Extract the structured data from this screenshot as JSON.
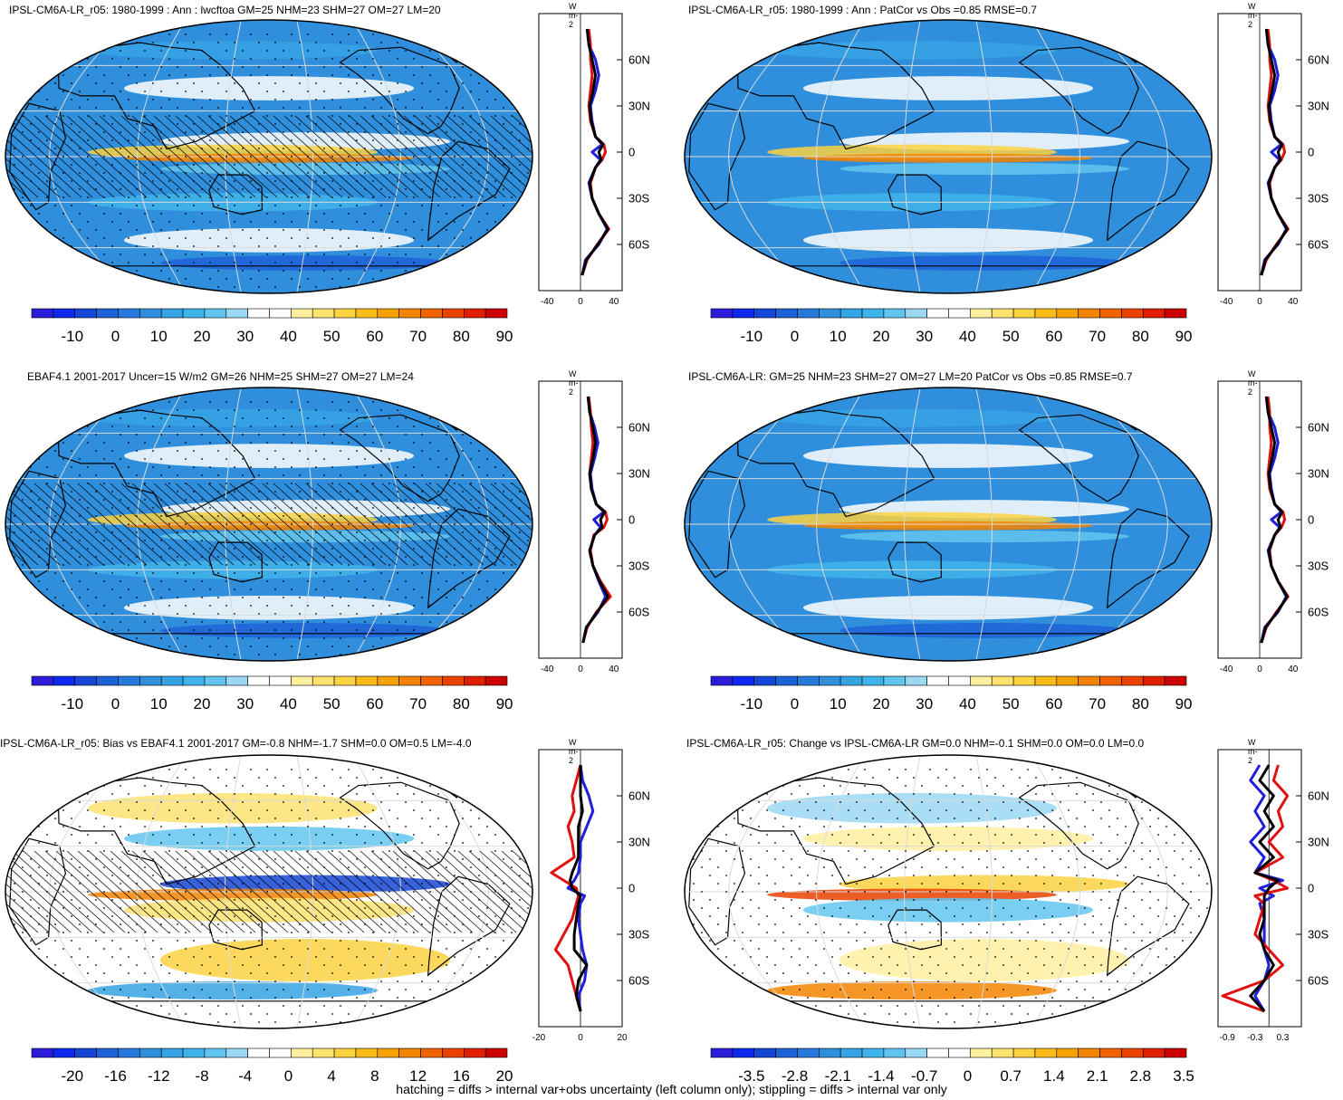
{
  "footnote": "hatching = diffs > internal var+obs uncertainty (left column only); stippling = diffs > internal var only",
  "colors": {
    "ocean_blue": "#2f8fdc",
    "model_line": "#1f1fdc",
    "obs_line": "#e01010",
    "total_line": "#000000"
  },
  "colorbars": {
    "abs": [
      "#2a1cd8",
      "#0d28ee",
      "#1546d6",
      "#1e62d8",
      "#2879dd",
      "#2f8fdc",
      "#36a3e4",
      "#3fb4ea",
      "#62c5ef",
      "#9ad8f4",
      "#ffffff",
      "#ffffff",
      "#fff0a0",
      "#fde270",
      "#fbd23f",
      "#f9bc18",
      "#f6a207",
      "#f48400",
      "#f06400",
      "#ea4200",
      "#e01e00",
      "#cc0000"
    ],
    "bias": [
      "#2a1cd8",
      "#0d28ee",
      "#1546d6",
      "#1e62d8",
      "#2879dd",
      "#2f8fdc",
      "#36a3e4",
      "#3fb4ea",
      "#62c5ef",
      "#9ad8f4",
      "#ffffff",
      "#ffffff",
      "#fff0a0",
      "#fde270",
      "#fbd23f",
      "#f9bc18",
      "#f6a207",
      "#f48400",
      "#f06400",
      "#ea4200",
      "#e01e00",
      "#cc0000"
    ]
  },
  "chart_data": [
    {
      "type": "map-with-zonal-mean",
      "title": "IPSL-CM6A-LR_r05: 1980-1999 : Ann : lwcftoa GM=25 NHM=23 SHM=27 OM=27 LM=20",
      "unit": "W m-2",
      "colorbar_ticks": [
        "-10",
        "0",
        "10",
        "20",
        "30",
        "40",
        "50",
        "60",
        "70",
        "80",
        "90"
      ],
      "zonal_xticks": [
        "-40",
        "0",
        "40"
      ],
      "zonal_xlim": [
        -50,
        50
      ],
      "lat_ticks": [
        "60N",
        "30N",
        "0",
        "30S",
        "60S"
      ],
      "lat_values": [
        60,
        30,
        0,
        -30,
        -60
      ],
      "series": [
        {
          "name": "model",
          "lat": [
            80,
            70,
            60,
            50,
            40,
            30,
            20,
            10,
            5,
            0,
            -5,
            -10,
            -20,
            -30,
            -40,
            -50,
            -60,
            -70,
            -80
          ],
          "values": [
            8,
            10,
            18,
            22,
            18,
            12,
            14,
            18,
            26,
            14,
            24,
            18,
            10,
            14,
            22,
            32,
            22,
            6,
            2
          ]
        },
        {
          "name": "obs",
          "lat": [
            80,
            70,
            60,
            50,
            40,
            30,
            20,
            10,
            5,
            0,
            -5,
            -10,
            -20,
            -30,
            -40,
            -50,
            -60,
            -70,
            -80
          ],
          "values": [
            10,
            12,
            12,
            14,
            12,
            10,
            12,
            18,
            28,
            30,
            26,
            18,
            12,
            14,
            22,
            34,
            20,
            8,
            2
          ]
        },
        {
          "name": "total",
          "lat": [
            80,
            70,
            60,
            50,
            40,
            30,
            20,
            10,
            5,
            0,
            -5,
            -10,
            -20,
            -30,
            -40,
            -50,
            -60,
            -70,
            -80
          ],
          "values": [
            8,
            10,
            14,
            18,
            15,
            11,
            13,
            18,
            27,
            22,
            25,
            18,
            11,
            14,
            22,
            33,
            21,
            7,
            2
          ]
        }
      ]
    },
    {
      "type": "map-with-zonal-mean",
      "title": "IPSL-CM6A-LR_r05: 1980-1999 : Ann : PatCor vs Obs =0.85 RMSE=0.7",
      "unit": "W m-2",
      "colorbar_ticks": [
        "-10",
        "0",
        "10",
        "20",
        "30",
        "40",
        "50",
        "60",
        "70",
        "80",
        "90"
      ],
      "zonal_xticks": [
        "-40",
        "0",
        "40"
      ],
      "zonal_xlim": [
        -50,
        50
      ],
      "lat_ticks": [
        "60N",
        "30N",
        "0",
        "30S",
        "60S"
      ],
      "lat_values": [
        60,
        30,
        0,
        -30,
        -60
      ],
      "series": [
        {
          "name": "model",
          "lat": [
            80,
            70,
            60,
            50,
            40,
            30,
            20,
            10,
            5,
            0,
            -5,
            -10,
            -20,
            -30,
            -40,
            -50,
            -60,
            -70,
            -80
          ],
          "values": [
            8,
            10,
            18,
            22,
            18,
            12,
            14,
            18,
            26,
            14,
            24,
            18,
            10,
            14,
            22,
            32,
            22,
            6,
            2
          ]
        },
        {
          "name": "obs",
          "lat": [
            80,
            70,
            60,
            50,
            40,
            30,
            20,
            10,
            5,
            0,
            -5,
            -10,
            -20,
            -30,
            -40,
            -50,
            -60,
            -70,
            -80
          ],
          "values": [
            10,
            12,
            12,
            14,
            12,
            10,
            12,
            18,
            28,
            30,
            26,
            18,
            12,
            14,
            22,
            34,
            20,
            8,
            2
          ]
        },
        {
          "name": "total",
          "lat": [
            80,
            70,
            60,
            50,
            40,
            30,
            20,
            10,
            5,
            0,
            -5,
            -10,
            -20,
            -30,
            -40,
            -50,
            -60,
            -70,
            -80
          ],
          "values": [
            8,
            10,
            14,
            18,
            15,
            11,
            13,
            18,
            27,
            22,
            25,
            18,
            11,
            14,
            22,
            33,
            21,
            7,
            2
          ]
        }
      ]
    },
    {
      "type": "map-with-zonal-mean",
      "title": "EBAF4.1 2001-2017 Uncer=15 W/m2 GM=26 NHM=25 SHM=27 OM=27 LM=24",
      "unit": "W m-2",
      "colorbar_ticks": [
        "-10",
        "0",
        "10",
        "20",
        "30",
        "40",
        "50",
        "60",
        "70",
        "80",
        "90"
      ],
      "zonal_xticks": [
        "-40",
        "0",
        "40"
      ],
      "zonal_xlim": [
        -50,
        50
      ],
      "lat_ticks": [
        "60N",
        "30N",
        "0",
        "30S",
        "60S"
      ],
      "lat_values": [
        60,
        30,
        0,
        -30,
        -60
      ],
      "series": [
        {
          "name": "model",
          "lat": [
            80,
            70,
            60,
            50,
            40,
            30,
            20,
            10,
            5,
            0,
            -5,
            -10,
            -20,
            -30,
            -40,
            -50,
            -60,
            -70,
            -80
          ],
          "values": [
            9,
            11,
            17,
            21,
            17,
            12,
            14,
            19,
            28,
            16,
            24,
            17,
            11,
            15,
            22,
            30,
            21,
            7,
            3
          ]
        },
        {
          "name": "obs",
          "lat": [
            80,
            70,
            60,
            50,
            40,
            30,
            20,
            10,
            5,
            0,
            -5,
            -10,
            -20,
            -30,
            -40,
            -50,
            -60,
            -70,
            -80
          ],
          "values": [
            10,
            12,
            13,
            15,
            13,
            11,
            13,
            19,
            30,
            32,
            28,
            16,
            12,
            15,
            24,
            36,
            19,
            8,
            3
          ]
        },
        {
          "name": "total",
          "lat": [
            80,
            70,
            60,
            50,
            40,
            30,
            20,
            10,
            5,
            0,
            -5,
            -10,
            -20,
            -30,
            -40,
            -50,
            -60,
            -70,
            -80
          ],
          "values": [
            9,
            11,
            15,
            18,
            15,
            11,
            13,
            19,
            29,
            24,
            26,
            17,
            11,
            15,
            23,
            33,
            20,
            7,
            3
          ]
        }
      ]
    },
    {
      "type": "map-with-zonal-mean",
      "title": "IPSL-CM6A-LR: GM=25 NHM=23 SHM=27 OM=27 LM=20 PatCor vs Obs =0.85 RMSE=0.7",
      "unit": "W m-2",
      "colorbar_ticks": [
        "-10",
        "0",
        "10",
        "20",
        "30",
        "40",
        "50",
        "60",
        "70",
        "80",
        "90"
      ],
      "zonal_xticks": [
        "-40",
        "0",
        "40"
      ],
      "zonal_xlim": [
        -50,
        50
      ],
      "lat_ticks": [
        "60N",
        "30N",
        "0",
        "30S",
        "60S"
      ],
      "lat_values": [
        60,
        30,
        0,
        -30,
        -60
      ],
      "series": [
        {
          "name": "model",
          "lat": [
            80,
            70,
            60,
            50,
            40,
            30,
            20,
            10,
            5,
            0,
            -5,
            -10,
            -20,
            -30,
            -40,
            -50,
            -60,
            -70,
            -80
          ],
          "values": [
            8,
            10,
            18,
            22,
            18,
            12,
            14,
            18,
            26,
            14,
            24,
            18,
            10,
            14,
            22,
            32,
            22,
            6,
            2
          ]
        },
        {
          "name": "obs",
          "lat": [
            80,
            70,
            60,
            50,
            40,
            30,
            20,
            10,
            5,
            0,
            -5,
            -10,
            -20,
            -30,
            -40,
            -50,
            -60,
            -70,
            -80
          ],
          "values": [
            10,
            12,
            12,
            14,
            12,
            10,
            12,
            18,
            28,
            30,
            26,
            18,
            12,
            14,
            22,
            34,
            20,
            8,
            2
          ]
        },
        {
          "name": "total",
          "lat": [
            80,
            70,
            60,
            50,
            40,
            30,
            20,
            10,
            5,
            0,
            -5,
            -10,
            -20,
            -30,
            -40,
            -50,
            -60,
            -70,
            -80
          ],
          "values": [
            8,
            10,
            14,
            18,
            15,
            11,
            13,
            18,
            27,
            22,
            25,
            18,
            11,
            14,
            22,
            33,
            21,
            7,
            2
          ]
        }
      ]
    },
    {
      "type": "map-with-zonal-mean",
      "title": "IPSL-CM6A-LR_r05: Bias vs EBAF4.1 2001-2017 GM=-0.8 NHM=-1.7 SHM=0.0 OM=0.5 LM=-4.0",
      "unit": "W m-2",
      "colorbar_ticks": [
        "-20",
        "-16",
        "-12",
        "-8",
        "-4",
        "0",
        "4",
        "8",
        "12",
        "16",
        "20"
      ],
      "zonal_xticks": [
        "-20",
        "0",
        "20"
      ],
      "zonal_xlim": [
        -20,
        20
      ],
      "lat_ticks": [
        "60N",
        "30N",
        "0",
        "30S",
        "60S"
      ],
      "lat_values": [
        60,
        30,
        0,
        -30,
        -60
      ],
      "series": [
        {
          "name": "model",
          "lat": [
            80,
            70,
            60,
            50,
            40,
            30,
            20,
            10,
            5,
            0,
            -5,
            -10,
            -20,
            -30,
            -40,
            -50,
            -60,
            -70,
            -80
          ],
          "values": [
            0,
            1,
            4,
            6,
            3,
            0,
            0,
            -1,
            -3,
            -6,
            2,
            0,
            -1,
            0,
            1,
            3,
            2,
            -1,
            0
          ]
        },
        {
          "name": "obs",
          "lat": [
            80,
            70,
            60,
            50,
            40,
            30,
            20,
            10,
            5,
            0,
            -5,
            -10,
            -20,
            -30,
            -40,
            -50,
            -60,
            -70,
            -80
          ],
          "values": [
            0,
            -2,
            -4,
            -3,
            -6,
            -4,
            -3,
            -14,
            -8,
            -2,
            -1,
            -2,
            -4,
            -8,
            -12,
            -6,
            -4,
            -2,
            0
          ]
        },
        {
          "name": "total",
          "lat": [
            80,
            70,
            60,
            50,
            40,
            30,
            20,
            10,
            5,
            0,
            -5,
            -10,
            -20,
            -30,
            -40,
            -50,
            -60,
            -70,
            -80
          ],
          "values": [
            0,
            0,
            0,
            1,
            -1,
            -1,
            -1,
            -4,
            -5,
            -4,
            0,
            -1,
            -2,
            -3,
            -3,
            3,
            -1,
            -2,
            0
          ]
        }
      ]
    },
    {
      "type": "map-with-zonal-mean",
      "title": "IPSL-CM6A-LR_r05: Change vs IPSL-CM6A-LR GM=0.0 NHM=-0.1 SHM=0.0 OM=0.0 LM=0.0",
      "unit": "W m-2",
      "colorbar_ticks": [
        "-3.5",
        "-2.8",
        "-2.1",
        "-1.4",
        "-0.7",
        "0",
        "0.7",
        "1.4",
        "2.1",
        "2.8",
        "3.5"
      ],
      "zonal_xticks": [
        "-0.9",
        "-0.3",
        "0.3"
      ],
      "zonal_xlim": [
        -1.1,
        0.7
      ],
      "lat_ticks": [
        "60N",
        "30N",
        "0",
        "30S",
        "60S"
      ],
      "lat_values": [
        60,
        30,
        0,
        -30,
        -60
      ],
      "series": [
        {
          "name": "model",
          "lat": [
            80,
            70,
            60,
            50,
            40,
            30,
            20,
            10,
            5,
            0,
            -5,
            -10,
            -20,
            -30,
            -40,
            -50,
            -60,
            -70,
            -80
          ],
          "values": [
            -0.2,
            -0.4,
            -0.1,
            -0.3,
            -0.1,
            -0.4,
            -0.1,
            -0.3,
            0.3,
            -0.2,
            0.1,
            -0.2,
            -0.1,
            -0.1,
            -0.1,
            0.0,
            -0.1,
            -0.3,
            -0.1
          ]
        },
        {
          "name": "obs",
          "lat": [
            80,
            70,
            60,
            50,
            40,
            30,
            20,
            10,
            5,
            0,
            -5,
            -10,
            -20,
            -30,
            -40,
            -50,
            -60,
            -70,
            -80
          ],
          "values": [
            0.2,
            0.1,
            0.4,
            0.2,
            0.3,
            0.0,
            0.3,
            -0.3,
            0.1,
            0.4,
            -0.3,
            -0.1,
            -0.2,
            -0.3,
            0.0,
            0.3,
            -0.1,
            -1.0,
            -0.1
          ]
        },
        {
          "name": "total",
          "lat": [
            80,
            70,
            60,
            50,
            40,
            30,
            20,
            10,
            5,
            0,
            -5,
            -10,
            -20,
            -30,
            -40,
            -50,
            -60,
            -70,
            -80
          ],
          "values": [
            0.0,
            -0.2,
            0.1,
            -0.1,
            0.1,
            -0.2,
            0.1,
            -0.3,
            0.2,
            0.0,
            -0.1,
            -0.1,
            -0.1,
            -0.2,
            -0.1,
            0.1,
            -0.1,
            -0.4,
            -0.1
          ]
        }
      ]
    }
  ]
}
